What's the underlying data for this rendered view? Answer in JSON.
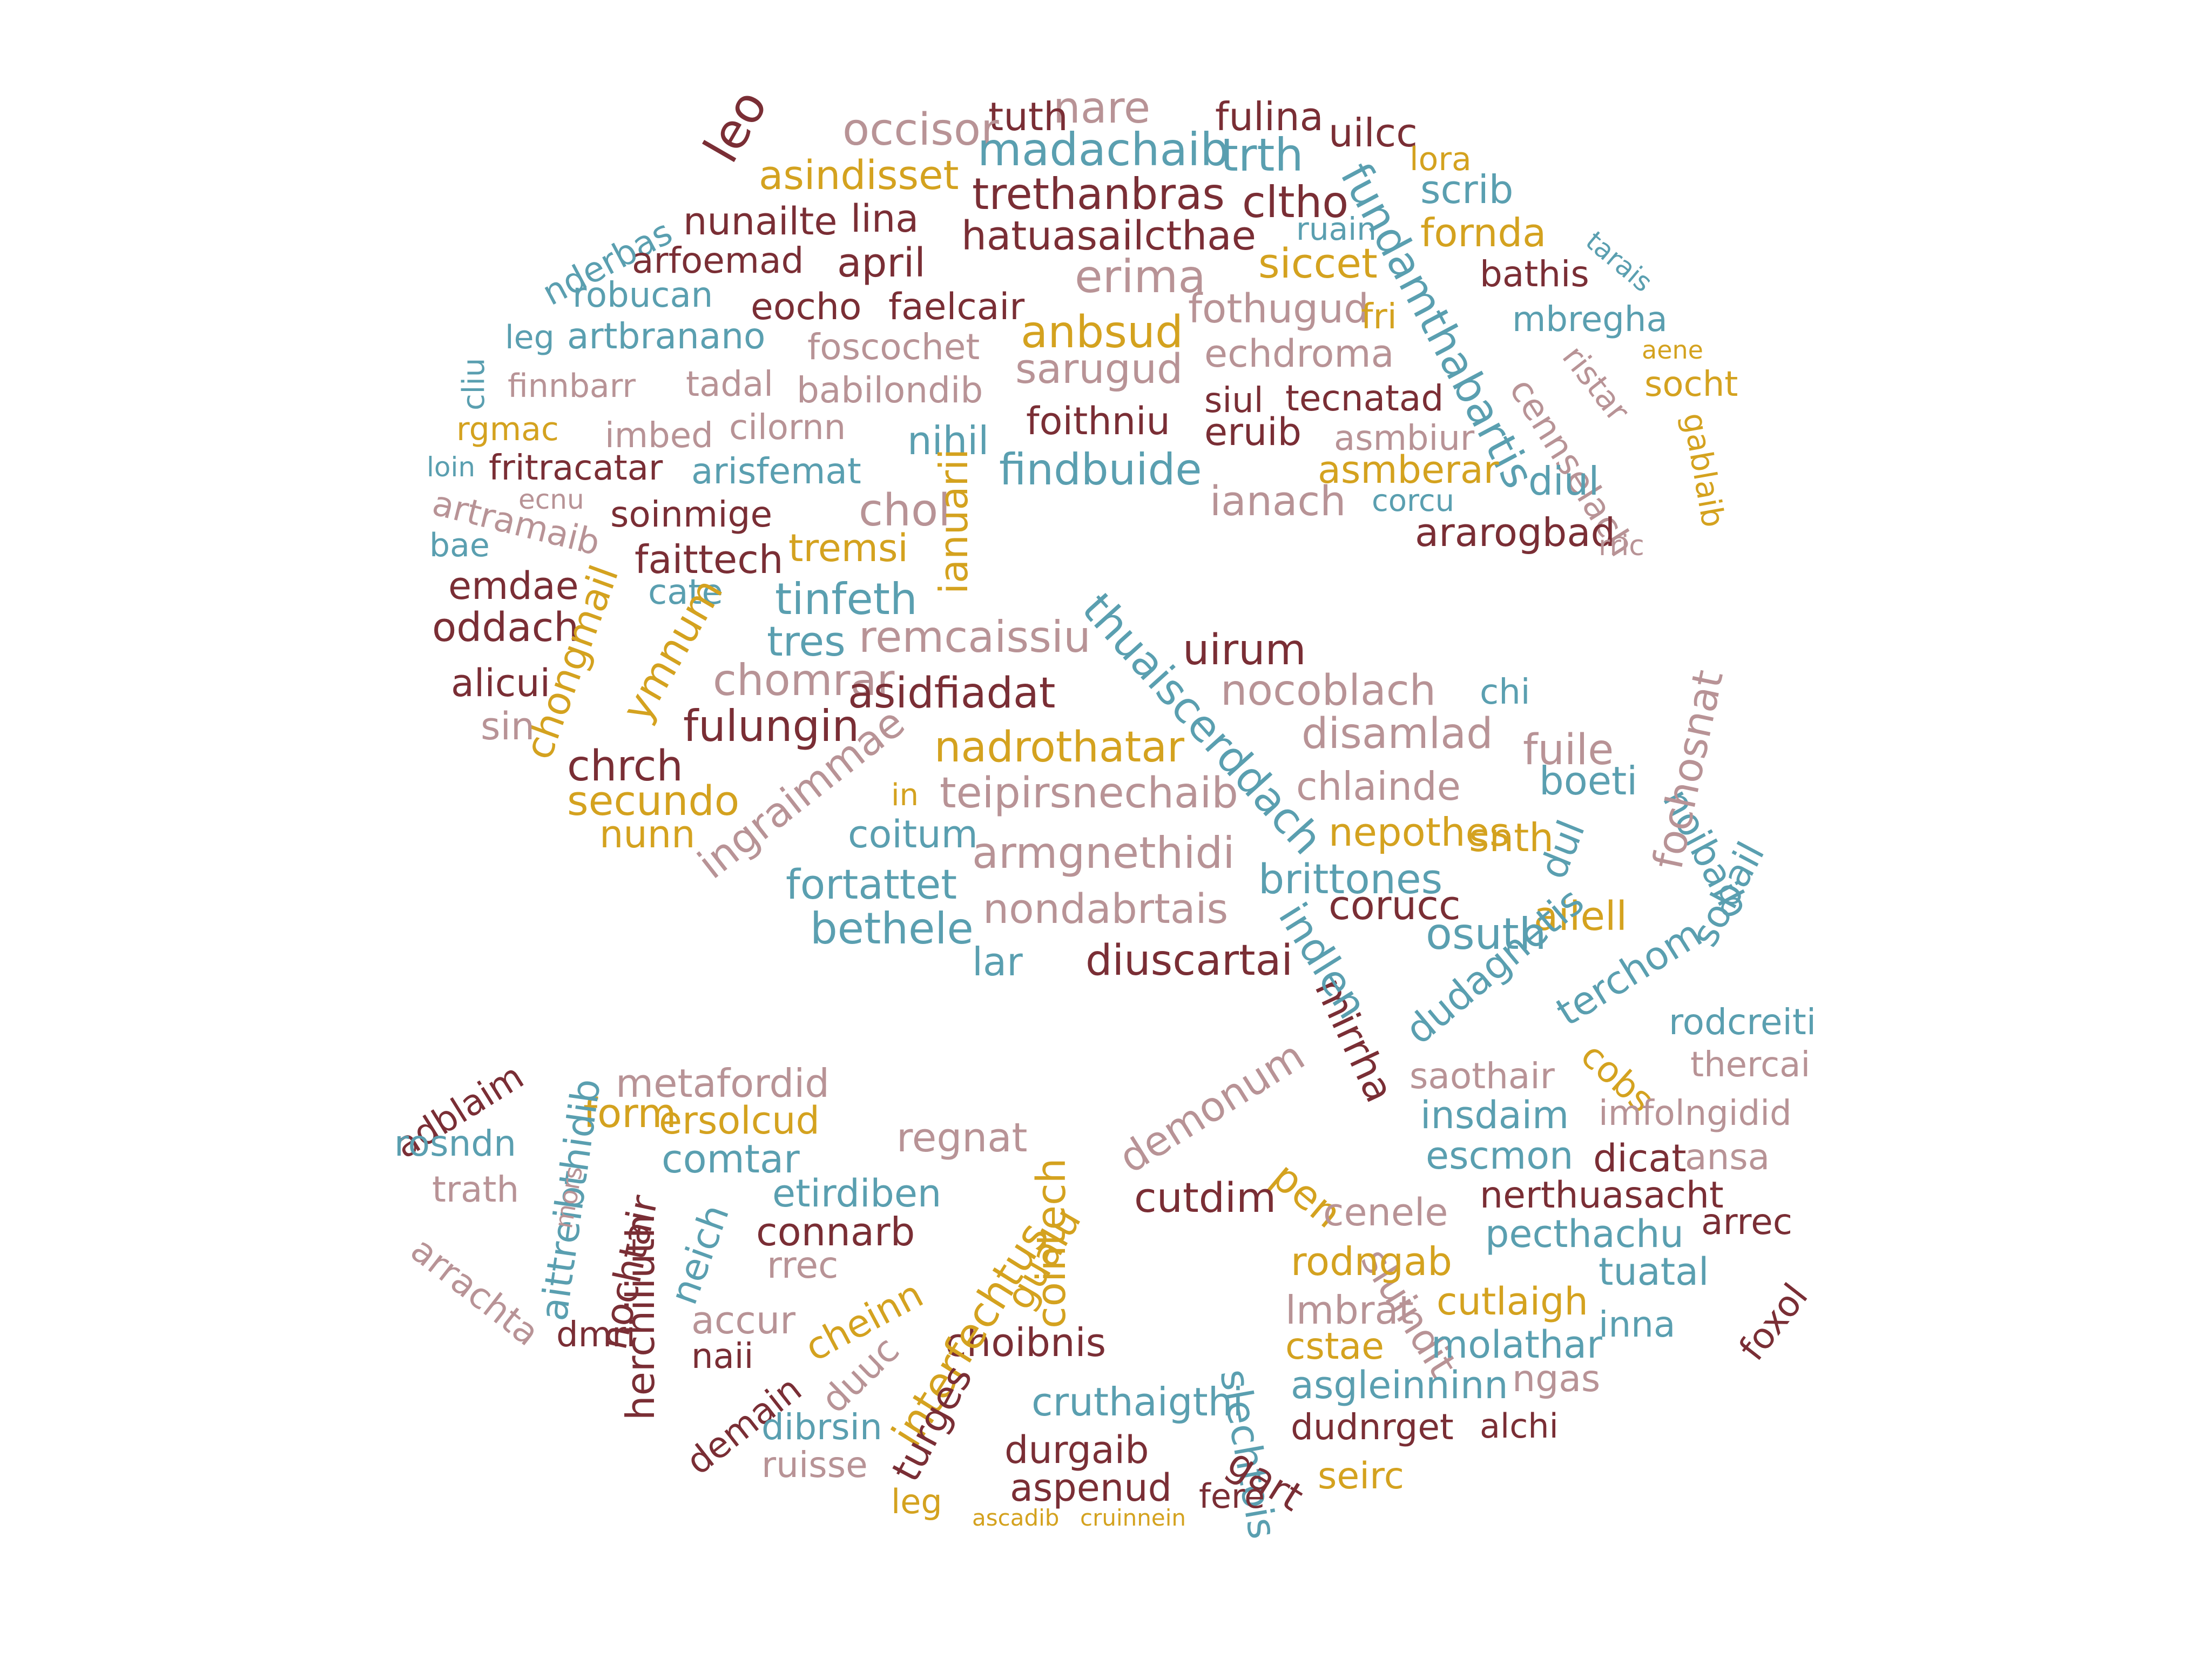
{
  "palette": {
    "maroon": "#7a2e35",
    "rose": "#b89396",
    "gold": "#d4a21f",
    "teal": "#5a9fb0"
  },
  "words": [
    "nare",
    "fulina",
    "tuth",
    "occisor",
    "madachaib",
    "trth",
    "uilcc",
    "leo",
    "asindisset",
    "lora",
    "scrib",
    "trethanbras",
    "cltho",
    "fundamthabartis",
    "nunailte",
    "lina",
    "hatuasailcthae",
    "fornda",
    "ruain",
    "nderbas",
    "arfoemad",
    "april",
    "erima",
    "siccet",
    "bathis",
    "tarais",
    "robucan",
    "eocho",
    "faelcair",
    "fothugud",
    "fri",
    "mbregha",
    "leg",
    "artbranano",
    "anbsud",
    "foscochet",
    "sarugud",
    "echdroma",
    "ristar",
    "aene",
    "cliu",
    "finnbarr",
    "tadal",
    "babilondib",
    "tecnatad",
    "cennselach",
    "socht",
    "rgmac",
    "imbed",
    "cilornn",
    "nihil",
    "foithniu",
    "siul",
    "eruib",
    "asmbiur",
    "gablaib",
    "loin",
    "fritracatar",
    "arisfemat",
    "findbuide",
    "asmberar",
    "diul",
    "artramaib",
    "ecnu",
    "soinmige",
    "chol",
    "ianach",
    "corcu",
    "ianuarii",
    "ararogbad",
    "bae",
    "faittech",
    "tremsi",
    "rric",
    "emdae",
    "cate",
    "tinfeth",
    "oddach",
    "tres",
    "remcaissiu",
    "thuaiscerddach",
    "uirum",
    "nocoblach",
    "chongmail",
    "ymnum",
    "alicui",
    "chomrar",
    "asidfiadat",
    "sin",
    "fulungin",
    "disamlad",
    "chi",
    "fuile",
    "chrch",
    "nadrothatar",
    "boeti",
    "noibaib",
    "secundo",
    "in",
    "teipirsnechaib",
    "chlainde",
    "fochosnat",
    "nunn",
    "coitum",
    "ingraimmae",
    "nepothes",
    "snth",
    "armgnethidi",
    "fortattet",
    "brittones",
    "corucc",
    "dul",
    "sobail",
    "bethele",
    "nondabrtais",
    "ailell",
    "diuscartai",
    "osuth",
    "lar",
    "mirrha",
    "indlen",
    "dudagnetis",
    "terchom",
    "rodcreiti",
    "cobs",
    "adblaim",
    "metafordid",
    "saothair",
    "thercai",
    "form",
    "ersolcud",
    "regnat",
    "demonum",
    "insdaim",
    "imfolngidid",
    "rosndn",
    "comtar",
    "etirdiben",
    "pen",
    "escmon",
    "dicat",
    "ansa",
    "trath",
    "cutdim",
    "sluindit",
    "nerthuasacht",
    "neich",
    "connarb",
    "cointech",
    "cenele",
    "pecthachu",
    "arrec",
    "rrec",
    "gualu",
    "slechtois",
    "rodngab",
    "tuatal",
    "accur",
    "cheinn",
    "lmbrat",
    "cutlaigh",
    "inna",
    "foxol",
    "dmri",
    "naii",
    "duuc",
    "choibnis",
    "molathar",
    "interfechtus",
    "cstae",
    "asgleinninn",
    "ngas",
    "demain",
    "cruthaigthi",
    "dibrsin",
    "dudnrget",
    "alchi",
    "gart",
    "turges",
    "durgaib",
    "ruisse",
    "aspenud",
    "fere",
    "seirc",
    "ascadib",
    "cruinnein",
    "herchiliuth",
    "aittreibthidib",
    "nochtair",
    "arrachta",
    "leg",
    "mors"
  ]
}
